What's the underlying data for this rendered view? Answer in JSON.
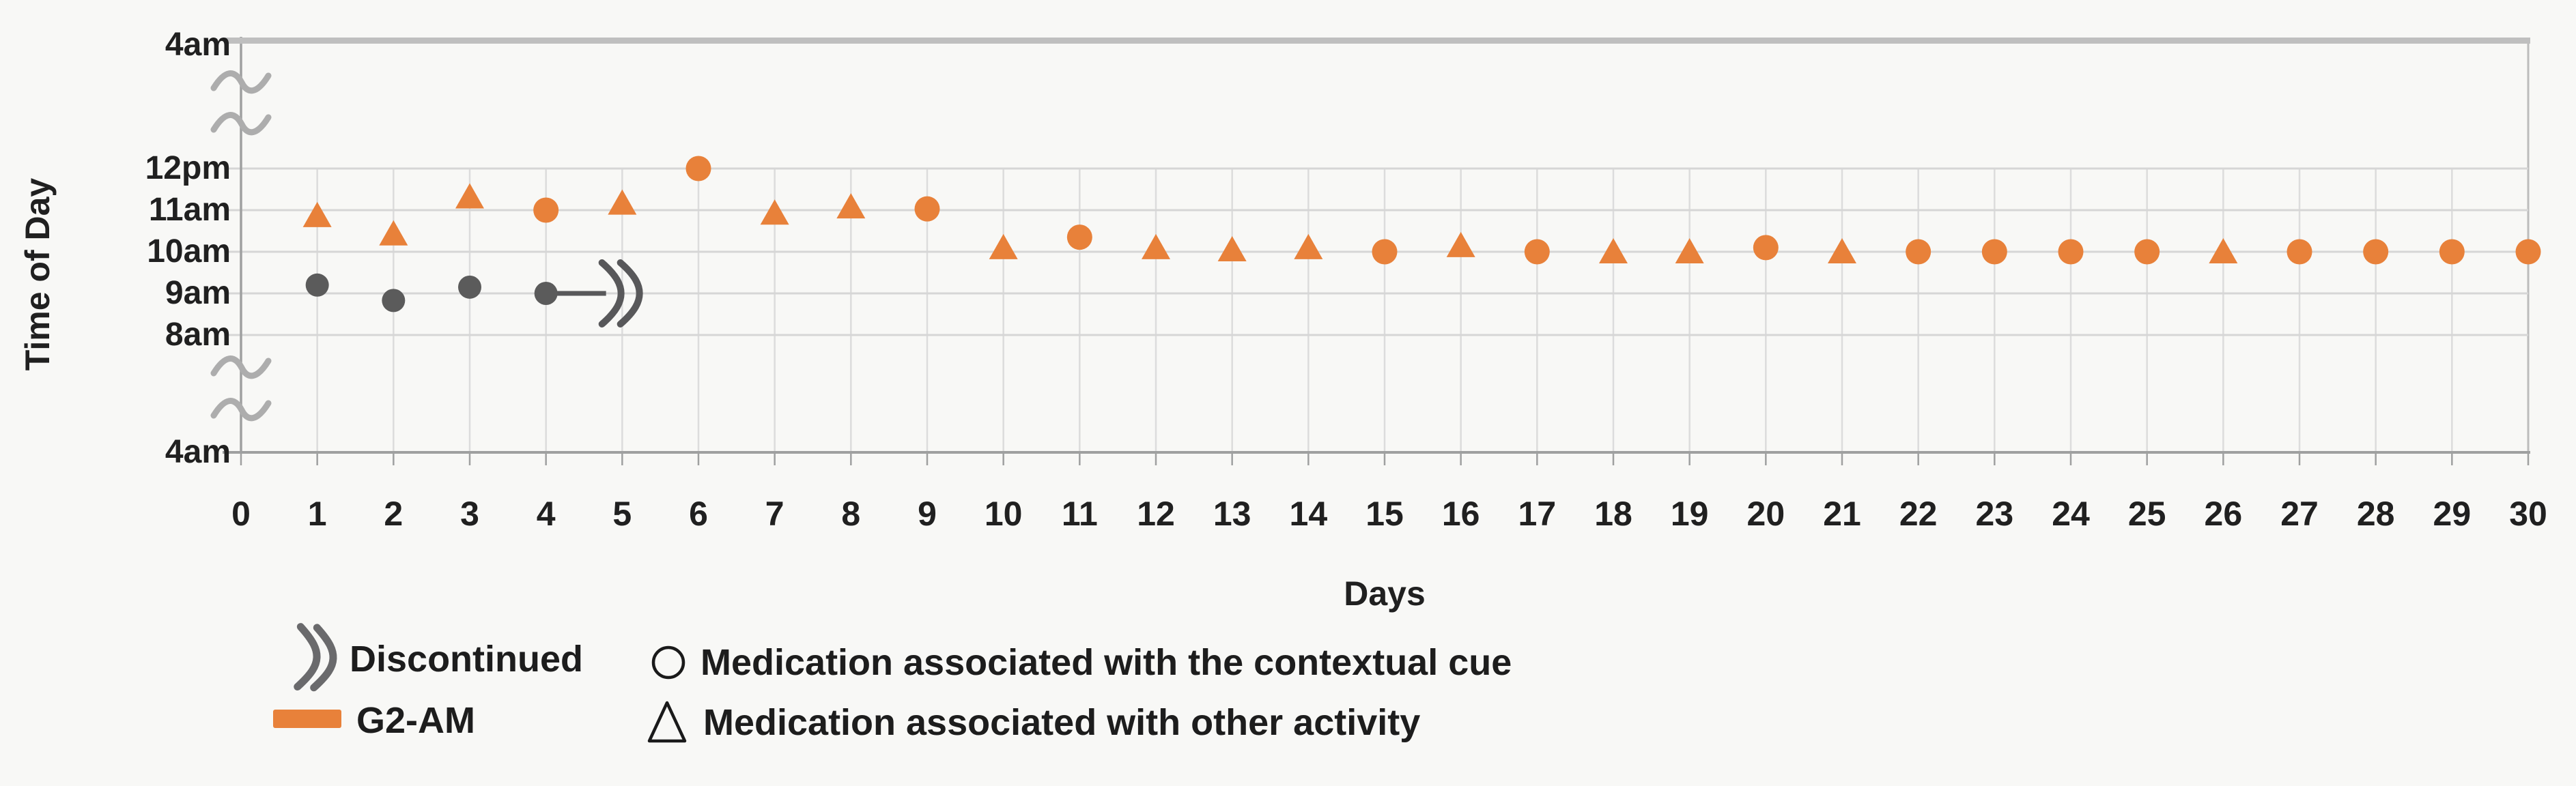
{
  "figure": {
    "background": "#F8F8F6",
    "text_color": "#202020",
    "accent_orange": "#E8813A",
    "marker_gray": "#5B5B5B",
    "gridline_color": "#D6D6D6",
    "axis_color": "#9FA0A0",
    "break_squiggle_color": "#ADADAD",
    "top_line_color": "#BFBFBF"
  },
  "chart_data": {
    "type": "scatter",
    "title": "",
    "xlabel": "Days",
    "ylabel": "Time of Day",
    "x_ticks": [
      "0",
      "1",
      "2",
      "3",
      "4",
      "5",
      "6",
      "7",
      "8",
      "9",
      "10",
      "11",
      "12",
      "13",
      "14",
      "15",
      "16",
      "17",
      "18",
      "19",
      "20",
      "21",
      "22",
      "23",
      "24",
      "25",
      "26",
      "27",
      "28",
      "29",
      "30"
    ],
    "y_ticks": [
      {
        "label": "4am",
        "pos": "top"
      },
      {
        "label": "12pm",
        "hour": 12
      },
      {
        "label": "11am",
        "hour": 11
      },
      {
        "label": "10am",
        "hour": 10
      },
      {
        "label": "9am",
        "hour": 9
      },
      {
        "label": "8am",
        "hour": 8
      },
      {
        "label": "4am",
        "pos": "bottom"
      }
    ],
    "axis_breaks": true,
    "axis_note": "y-axis runs 4am (bottom) to 4am next day (top) with squiggle breaks between 4-8am and 12pm-4am",
    "grid": true,
    "marker_meaning": {
      "circle": "Medication associated with the contextual cue",
      "triangle": "Medication associated with other activity"
    },
    "series": [
      {
        "name": "G2-AM",
        "color": "#E8813A",
        "points": [
          {
            "day": 1,
            "marker": "triangle",
            "hour": 10.87
          },
          {
            "day": 2,
            "marker": "triangle",
            "hour": 10.43
          },
          {
            "day": 3,
            "marker": "triangle",
            "hour": 11.32
          },
          {
            "day": 4,
            "marker": "circle",
            "hour": 11.0
          },
          {
            "day": 5,
            "marker": "triangle",
            "hour": 11.17
          },
          {
            "day": 6,
            "marker": "circle",
            "hour": 12.0
          },
          {
            "day": 7,
            "marker": "triangle",
            "hour": 10.93
          },
          {
            "day": 8,
            "marker": "triangle",
            "hour": 11.08
          },
          {
            "day": 9,
            "marker": "circle",
            "hour": 11.03
          },
          {
            "day": 10,
            "marker": "triangle",
            "hour": 10.1
          },
          {
            "day": 11,
            "marker": "circle",
            "hour": 10.35
          },
          {
            "day": 12,
            "marker": "triangle",
            "hour": 10.1
          },
          {
            "day": 13,
            "marker": "triangle",
            "hour": 10.05
          },
          {
            "day": 14,
            "marker": "triangle",
            "hour": 10.1
          },
          {
            "day": 15,
            "marker": "circle",
            "hour": 10.0
          },
          {
            "day": 16,
            "marker": "triangle",
            "hour": 10.15
          },
          {
            "day": 17,
            "marker": "circle",
            "hour": 10.0
          },
          {
            "day": 18,
            "marker": "triangle",
            "hour": 10.0
          },
          {
            "day": 19,
            "marker": "triangle",
            "hour": 10.0
          },
          {
            "day": 20,
            "marker": "circle",
            "hour": 10.1
          },
          {
            "day": 21,
            "marker": "triangle",
            "hour": 10.0
          },
          {
            "day": 22,
            "marker": "circle",
            "hour": 10.0
          },
          {
            "day": 23,
            "marker": "circle",
            "hour": 10.0
          },
          {
            "day": 24,
            "marker": "circle",
            "hour": 10.0
          },
          {
            "day": 25,
            "marker": "circle",
            "hour": 10.0
          },
          {
            "day": 26,
            "marker": "triangle",
            "hour": 10.0
          },
          {
            "day": 27,
            "marker": "circle",
            "hour": 10.0
          },
          {
            "day": 28,
            "marker": "circle",
            "hour": 10.0
          },
          {
            "day": 29,
            "marker": "circle",
            "hour": 10.0
          },
          {
            "day": 30,
            "marker": "circle",
            "hour": 10.0
          }
        ]
      },
      {
        "name": "Discontinued medication",
        "color": "#5B5B5B",
        "discontinued_after_day": 4,
        "points": [
          {
            "day": 1,
            "marker": "circle",
            "hour": 9.2
          },
          {
            "day": 2,
            "marker": "circle",
            "hour": 8.83
          },
          {
            "day": 3,
            "marker": "circle",
            "hour": 9.15
          },
          {
            "day": 4,
            "marker": "circle",
            "hour": 9.0
          }
        ]
      }
    ]
  },
  "legend": {
    "items": [
      {
        "symbol": "axis-break",
        "label": "Discontinued"
      },
      {
        "symbol": "orange-bar",
        "label": "G2-AM"
      },
      {
        "symbol": "circle-outline",
        "label": "Medication associated with the contextual cue"
      },
      {
        "symbol": "triangle-outline",
        "label": "Medication associated with other activity"
      }
    ]
  }
}
